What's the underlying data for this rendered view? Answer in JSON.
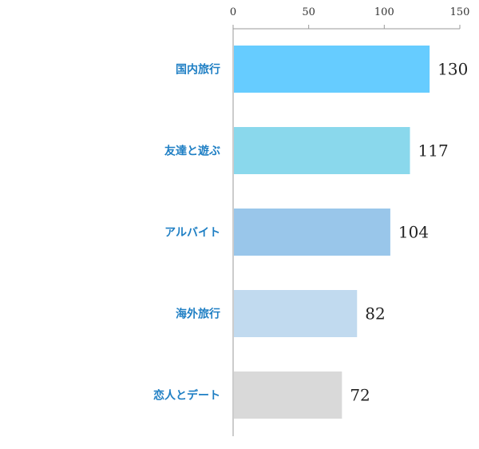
{
  "chart_data": {
    "type": "bar",
    "orientation": "horizontal",
    "categories": [
      "国内旅行",
      "友達と遊ぶ",
      "アルバイト",
      "海外旅行",
      "恋人とデート"
    ],
    "values": [
      130,
      117,
      104,
      82,
      72
    ],
    "xlim": [
      0,
      150
    ],
    "xticks": [
      0,
      50,
      100,
      150
    ],
    "x_axis_position": "top",
    "grid": false,
    "legend": "none",
    "bar_colors": [
      "#66ccff",
      "#8ad8ec",
      "#99c6ea",
      "#c1daef",
      "#d9d9d9"
    ],
    "category_label_color": "#1f7fc4"
  }
}
